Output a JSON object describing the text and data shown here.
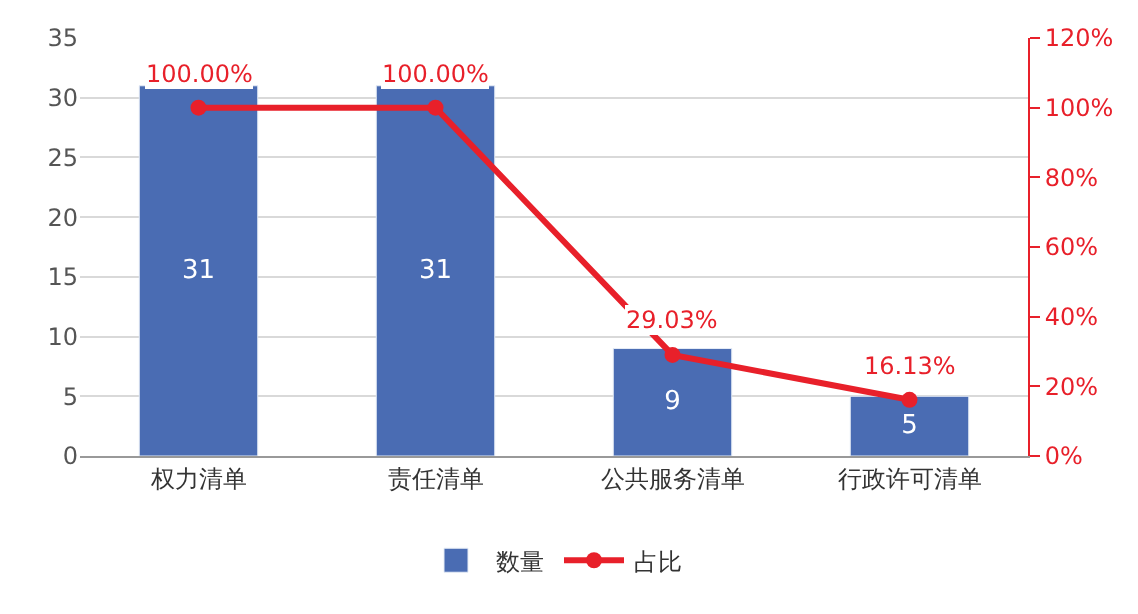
{
  "chart_data": {
    "type": "bar",
    "categories": [
      "权力清单",
      "责任清单",
      "公共服务清单",
      "行政许可清单"
    ],
    "series": [
      {
        "name": "数量",
        "color": "#4a6cb3",
        "values": [
          31,
          31,
          9,
          5
        ],
        "value_labels": [
          "31",
          "31",
          "9",
          "5"
        ]
      },
      {
        "name": "占比",
        "type": "line",
        "axis": "y2",
        "color": "#e8202a",
        "values": [
          100,
          100,
          29.03,
          16.13
        ],
        "value_labels": [
          "100.00%",
          "100.00%",
          "29.03%",
          "16.13%"
        ],
        "marker": "circle",
        "line_style": "solid"
      }
    ],
    "ylim": [
      0,
      35
    ],
    "yticks": [
      0,
      5,
      10,
      15,
      20,
      25,
      30,
      35
    ],
    "y2lim": [
      0,
      120
    ],
    "y2ticks": [
      {
        "value": 0,
        "label": "0%"
      },
      {
        "value": 20,
        "label": "20%"
      },
      {
        "value": 40,
        "label": "40%"
      },
      {
        "value": 60,
        "label": "60%"
      },
      {
        "value": 80,
        "label": "80%"
      },
      {
        "value": 100,
        "label": "100%"
      },
      {
        "value": 120,
        "label": "120%"
      }
    ],
    "grid": "y",
    "legend": "bottom"
  }
}
